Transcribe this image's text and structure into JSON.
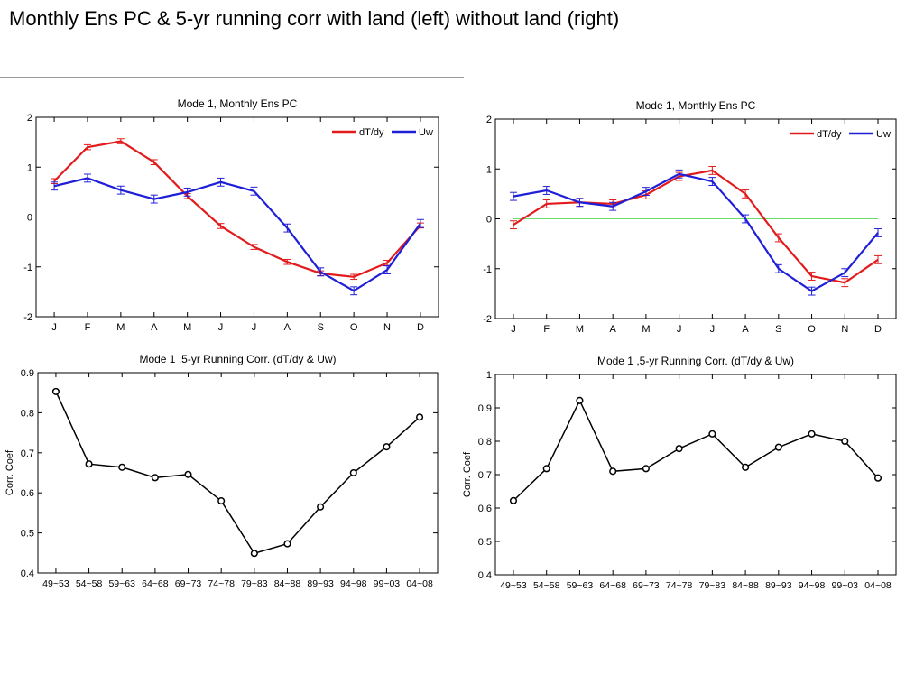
{
  "slide": {
    "title": "Monthly Ens PC  &  5-yr running corr with land (left) without land (right)"
  },
  "colors": {
    "dTdy": "#e31a1c",
    "Uw": "#1f1fd8",
    "zero_line": "#66e066",
    "corr": "#000000"
  },
  "chart_data": [
    {
      "id": "pc_left",
      "type": "line",
      "title": "Mode 1, Monthly Ens PC",
      "ylabel": "",
      "categories": [
        "J",
        "F",
        "M",
        "A",
        "M",
        "J",
        "J",
        "A",
        "S",
        "O",
        "N",
        "D"
      ],
      "ylim": [
        -2,
        2
      ],
      "yticks": [
        -2,
        -1,
        0,
        1,
        2
      ],
      "legend": "top-right",
      "zero_line": true,
      "series": [
        {
          "name": "dT/dy",
          "color": "#e31a1c",
          "values": [
            0.72,
            1.4,
            1.52,
            1.1,
            0.42,
            -0.18,
            -0.6,
            -0.9,
            -1.13,
            -1.2,
            -0.92,
            -0.17
          ],
          "err": 0.05
        },
        {
          "name": "Uw",
          "color": "#1f1fd8",
          "values": [
            0.62,
            0.78,
            0.54,
            0.36,
            0.5,
            0.7,
            0.52,
            -0.22,
            -1.1,
            -1.48,
            -1.06,
            -0.13
          ],
          "err": 0.08
        }
      ]
    },
    {
      "id": "pc_right",
      "type": "line",
      "title": "Mode 1, Monthly Ens PC",
      "ylabel": "",
      "categories": [
        "J",
        "F",
        "M",
        "A",
        "M",
        "J",
        "J",
        "A",
        "S",
        "O",
        "N",
        "D"
      ],
      "ylim": [
        -2,
        2
      ],
      "yticks": [
        -2,
        -1,
        0,
        1,
        2
      ],
      "legend": "top-right",
      "zero_line": true,
      "series": [
        {
          "name": "dT/dy",
          "color": "#e31a1c",
          "values": [
            -0.12,
            0.3,
            0.33,
            0.3,
            0.48,
            0.85,
            0.97,
            0.5,
            -0.38,
            -1.15,
            -1.28,
            -0.82
          ],
          "err": 0.08
        },
        {
          "name": "Uw",
          "color": "#1f1fd8",
          "values": [
            0.45,
            0.57,
            0.33,
            0.25,
            0.55,
            0.9,
            0.75,
            0.0,
            -1.0,
            -1.45,
            -1.08,
            -0.28
          ],
          "err": 0.08
        }
      ]
    },
    {
      "id": "corr_left",
      "type": "line",
      "title": "Mode 1 ,5-yr Running Corr. (dT/dy & Uw)",
      "ylabel": "Corr. Coef",
      "categories": [
        "49~53",
        "54~58",
        "59~63",
        "64~68",
        "69~73",
        "74~78",
        "79~83",
        "84~88",
        "89~93",
        "94~98",
        "99~03",
        "04~08"
      ],
      "ylim": [
        0.4,
        0.9
      ],
      "yticks": [
        0.4,
        0.5,
        0.6,
        0.7,
        0.8,
        0.9
      ],
      "series": [
        {
          "name": "",
          "color": "#000000",
          "values": [
            0.853,
            0.672,
            0.664,
            0.638,
            0.646,
            0.58,
            0.449,
            0.473,
            0.565,
            0.65,
            0.715,
            0.789
          ]
        }
      ]
    },
    {
      "id": "corr_right",
      "type": "line",
      "title": "Mode 1 ,5-yr Running Corr. (dT/dy & Uw)",
      "ylabel": "Corr. Coef",
      "categories": [
        "49~53",
        "54~58",
        "59~63",
        "64~68",
        "69~73",
        "74~78",
        "79~83",
        "84~88",
        "89~93",
        "94~98",
        "99~03",
        "04~08"
      ],
      "ylim": [
        0.4,
        1
      ],
      "yticks": [
        0.4,
        0.5,
        0.6,
        0.7,
        0.8,
        0.9,
        1
      ],
      "series": [
        {
          "name": "",
          "color": "#000000",
          "values": [
            0.622,
            0.718,
            0.922,
            0.71,
            0.718,
            0.778,
            0.822,
            0.722,
            0.782,
            0.822,
            0.8,
            0.69
          ]
        }
      ]
    }
  ]
}
